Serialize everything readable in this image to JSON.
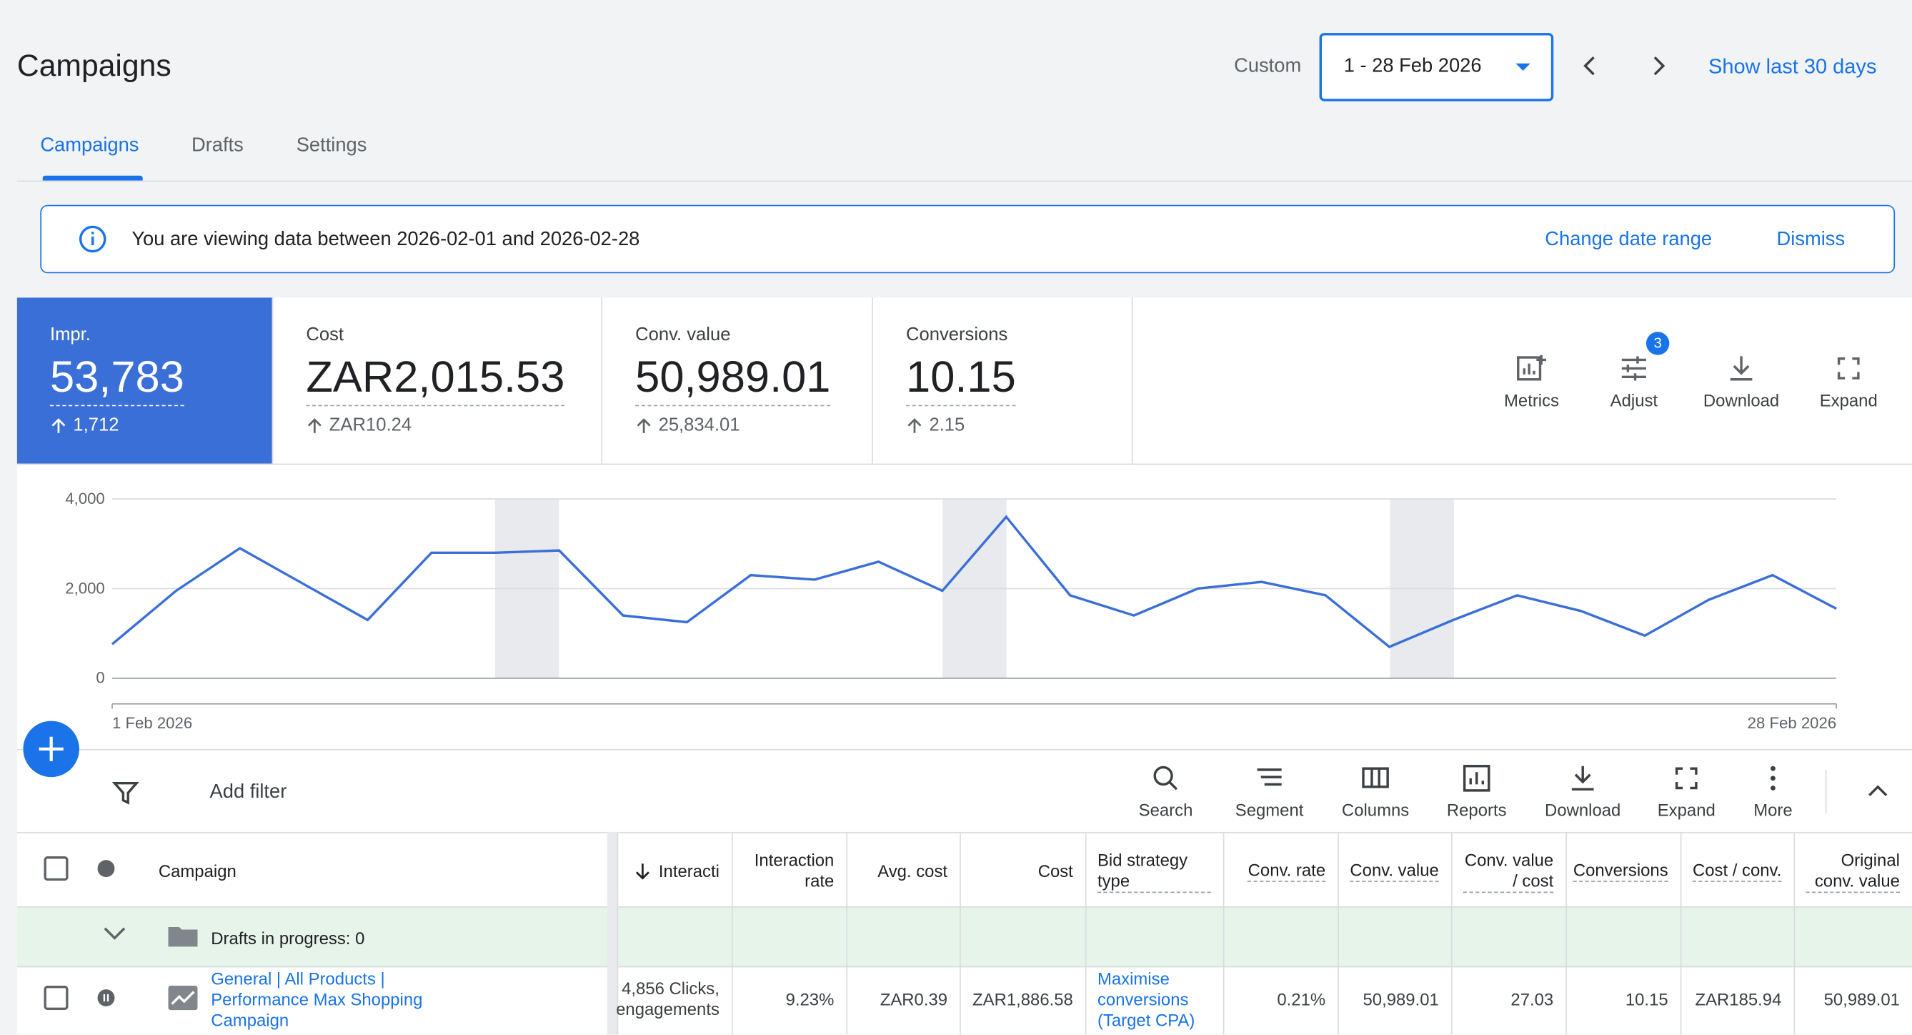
{
  "header": {
    "title": "Campaigns",
    "date_label": "Custom",
    "date_range": "1 - 28 Feb 2026",
    "show_last": "Show last 30 days"
  },
  "tabs": [
    "Campaigns",
    "Drafts",
    "Settings"
  ],
  "banner": {
    "text": "You are viewing data between 2026-02-01 and 2026-02-28",
    "change": "Change date range",
    "dismiss": "Dismiss"
  },
  "metrics": [
    {
      "label": "Impr.",
      "value": "53,783",
      "change": "1,712"
    },
    {
      "label": "Cost",
      "value": "ZAR2,015.53",
      "change": "ZAR10.24"
    },
    {
      "label": "Conv. value",
      "value": "50,989.01",
      "change": "25,834.01"
    },
    {
      "label": "Conversions",
      "value": "10.15",
      "change": "2.15"
    }
  ],
  "tools": {
    "items": [
      "Metrics",
      "Adjust",
      "Download",
      "Expand"
    ],
    "badge": "3"
  },
  "chart_data": {
    "type": "line",
    "color": "#3b6fd8",
    "grid": true,
    "categories": [
      "1 Feb 2026",
      null,
      null,
      null,
      null,
      null,
      null,
      null,
      null,
      null,
      null,
      null,
      null,
      null,
      null,
      null,
      null,
      null,
      null,
      null,
      null,
      null,
      null,
      null,
      null,
      null,
      null,
      "28 Feb 2026"
    ],
    "values": [
      760,
      1950,
      2900,
      2100,
      1300,
      2800,
      2800,
      2850,
      1400,
      1250,
      2300,
      2200,
      2600,
      1950,
      3600,
      1850,
      1400,
      2000,
      2150,
      1850,
      700,
      1300,
      1850,
      1500,
      950,
      1750,
      2300,
      1550
    ],
    "ylim": [
      0,
      4000
    ],
    "yticks": [
      0,
      {
        "value": 2000,
        "label": "2,000"
      },
      {
        "value": 4000,
        "label": "4,000"
      }
    ]
  },
  "toolbar": {
    "add_filter": "Add filter",
    "buttons": [
      "Search",
      "Segment",
      "Columns",
      "Reports",
      "Download",
      "Expand",
      "More"
    ]
  },
  "table": {
    "columns": [
      "Campaign",
      "Interacti",
      "Interaction rate",
      "Avg. cost",
      "Cost",
      "Bid strategy type",
      "Conv. rate",
      "Conv. value",
      "Conv. value / cost",
      "Conversions",
      "Cost / conv.",
      "Original conv. value"
    ],
    "group_row": "Drafts in progress: 0",
    "rows": [
      [
        "General | All Products | Performance Max Shopping Campaign",
        "4,856 Clicks, engagements",
        "9.23%",
        "ZAR0.39",
        "ZAR1,886.58",
        "Maximise conversions (Target CPA)",
        "0.21%",
        "50,989.01",
        "27.03",
        "10.15",
        "ZAR185.94",
        "50,989.01"
      ]
    ]
  }
}
